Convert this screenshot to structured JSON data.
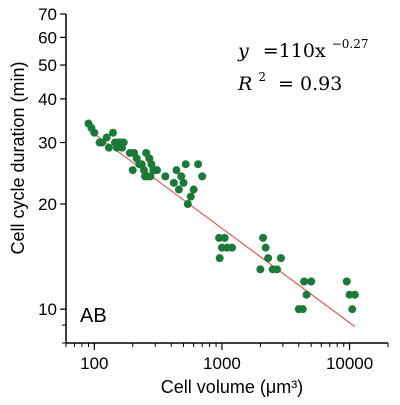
{
  "chart_data": {
    "type": "scatter",
    "panel_label": "AB",
    "xlabel": "Cell volume (μm³)",
    "ylabel": "Cell cycle duration (min)",
    "xscale": "log",
    "yscale": "log",
    "xlim": [
      60,
      20000
    ],
    "ylim": [
      8,
      70
    ],
    "xticks_major": [
      100,
      1000,
      10000
    ],
    "xtick_labels": [
      "100",
      "1000",
      "10000"
    ],
    "yticks_labeled": [
      10,
      20,
      30,
      40,
      50,
      60,
      70
    ],
    "ytick_labels": [
      "10",
      "20",
      "30",
      "40",
      "50",
      "60",
      "70"
    ],
    "grid": false,
    "legend": "none",
    "colors": {
      "points": "#1b7a38",
      "fit_line": "#e0402e"
    },
    "annotation": {
      "equation_lhs": "y",
      "equation_rhs": "=110x",
      "equation_exponent": "−0.27",
      "r2_lhs": "R",
      "r2_exp": "2",
      "r2_rhs": "= 0.93"
    },
    "fit": {
      "coefficient": 110,
      "exponent": -0.27,
      "x_range": [
        90,
        11000
      ]
    },
    "points": [
      [
        90,
        34
      ],
      [
        95,
        33
      ],
      [
        100,
        32
      ],
      [
        110,
        30
      ],
      [
        115,
        30
      ],
      [
        125,
        31
      ],
      [
        130,
        29
      ],
      [
        140,
        32
      ],
      [
        145,
        30
      ],
      [
        150,
        29
      ],
      [
        155,
        30
      ],
      [
        160,
        30
      ],
      [
        165,
        29
      ],
      [
        170,
        30
      ],
      [
        190,
        28
      ],
      [
        200,
        25
      ],
      [
        205,
        28
      ],
      [
        215,
        27
      ],
      [
        225,
        26
      ],
      [
        235,
        26
      ],
      [
        245,
        25
      ],
      [
        250,
        24
      ],
      [
        255,
        28
      ],
      [
        260,
        24
      ],
      [
        270,
        27
      ],
      [
        275,
        24
      ],
      [
        280,
        26
      ],
      [
        290,
        25
      ],
      [
        300,
        25
      ],
      [
        310,
        25
      ],
      [
        360,
        24
      ],
      [
        420,
        23
      ],
      [
        440,
        25
      ],
      [
        460,
        22
      ],
      [
        480,
        24
      ],
      [
        500,
        23
      ],
      [
        520,
        26
      ],
      [
        540,
        20
      ],
      [
        570,
        21
      ],
      [
        600,
        22
      ],
      [
        650,
        26
      ],
      [
        700,
        24
      ],
      [
        950,
        16
      ],
      [
        960,
        14
      ],
      [
        1000,
        15
      ],
      [
        1050,
        16
      ],
      [
        1100,
        15
      ],
      [
        1200,
        15
      ],
      [
        2000,
        13
      ],
      [
        2100,
        16
      ],
      [
        2200,
        15
      ],
      [
        2300,
        14
      ],
      [
        2500,
        13
      ],
      [
        2700,
        13
      ],
      [
        2900,
        14
      ],
      [
        4000,
        10
      ],
      [
        4300,
        10
      ],
      [
        4400,
        12
      ],
      [
        4600,
        11
      ],
      [
        5000,
        12
      ],
      [
        9500,
        12
      ],
      [
        10000,
        11
      ],
      [
        10500,
        10
      ],
      [
        11000,
        11
      ]
    ]
  }
}
